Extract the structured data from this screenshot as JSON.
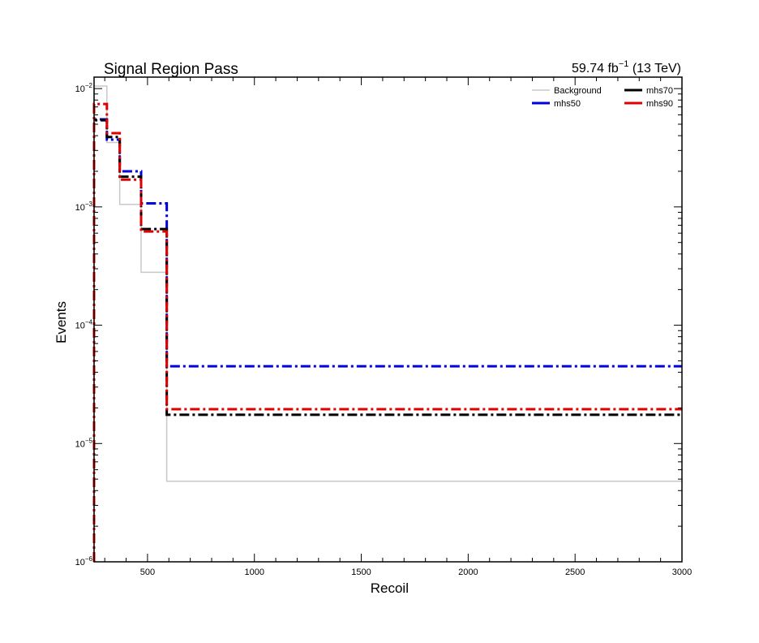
{
  "chart_data": {
    "type": "line",
    "title": "Signal Region Pass",
    "lumi_value": "59.74 fb",
    "lumi_exp": "−1",
    "lumi_energy": " (13 TeV)",
    "xlabel": "Recoil",
    "ylabel": "Events",
    "xlim": [
      250,
      3000
    ],
    "ylim": [
      1e-06,
      0.0125
    ],
    "yscale": "log",
    "xticks": [
      500,
      1000,
      1500,
      2000,
      2500,
      3000
    ],
    "yticks": [
      {
        "value": 1e-06,
        "base": "10",
        "exp": "−6"
      },
      {
        "value": 1e-05,
        "base": "10",
        "exp": "−5"
      },
      {
        "value": 0.0001,
        "base": "10",
        "exp": "−4"
      },
      {
        "value": 0.001,
        "base": "10",
        "exp": "−3"
      },
      {
        "value": 0.01,
        "base": "10",
        "exp": "−2"
      }
    ],
    "bin_edges": [
      250,
      310,
      370,
      470,
      590,
      3000
    ],
    "legend_position": "top-right",
    "series": [
      {
        "name": "Background",
        "color": "#c8c8c8",
        "style": "solid",
        "width": 1.5,
        "values": [
          0.0105,
          0.0035,
          0.00105,
          0.00028,
          4.8e-06
        ]
      },
      {
        "name": "mhs50",
        "color": "#0000dd",
        "style": "dashdot",
        "width": 3,
        "values": [
          0.0055,
          0.0037,
          0.002,
          0.00107,
          4.5e-05
        ]
      },
      {
        "name": "mhs70",
        "color": "#000000",
        "style": "dashdot",
        "width": 3,
        "values": [
          0.0054,
          0.0039,
          0.0018,
          0.00065,
          1.75e-05
        ]
      },
      {
        "name": "mhs90",
        "color": "#e00000",
        "style": "dashdot",
        "width": 3,
        "values": [
          0.0074,
          0.0042,
          0.0017,
          0.00062,
          1.95e-05
        ]
      }
    ]
  }
}
